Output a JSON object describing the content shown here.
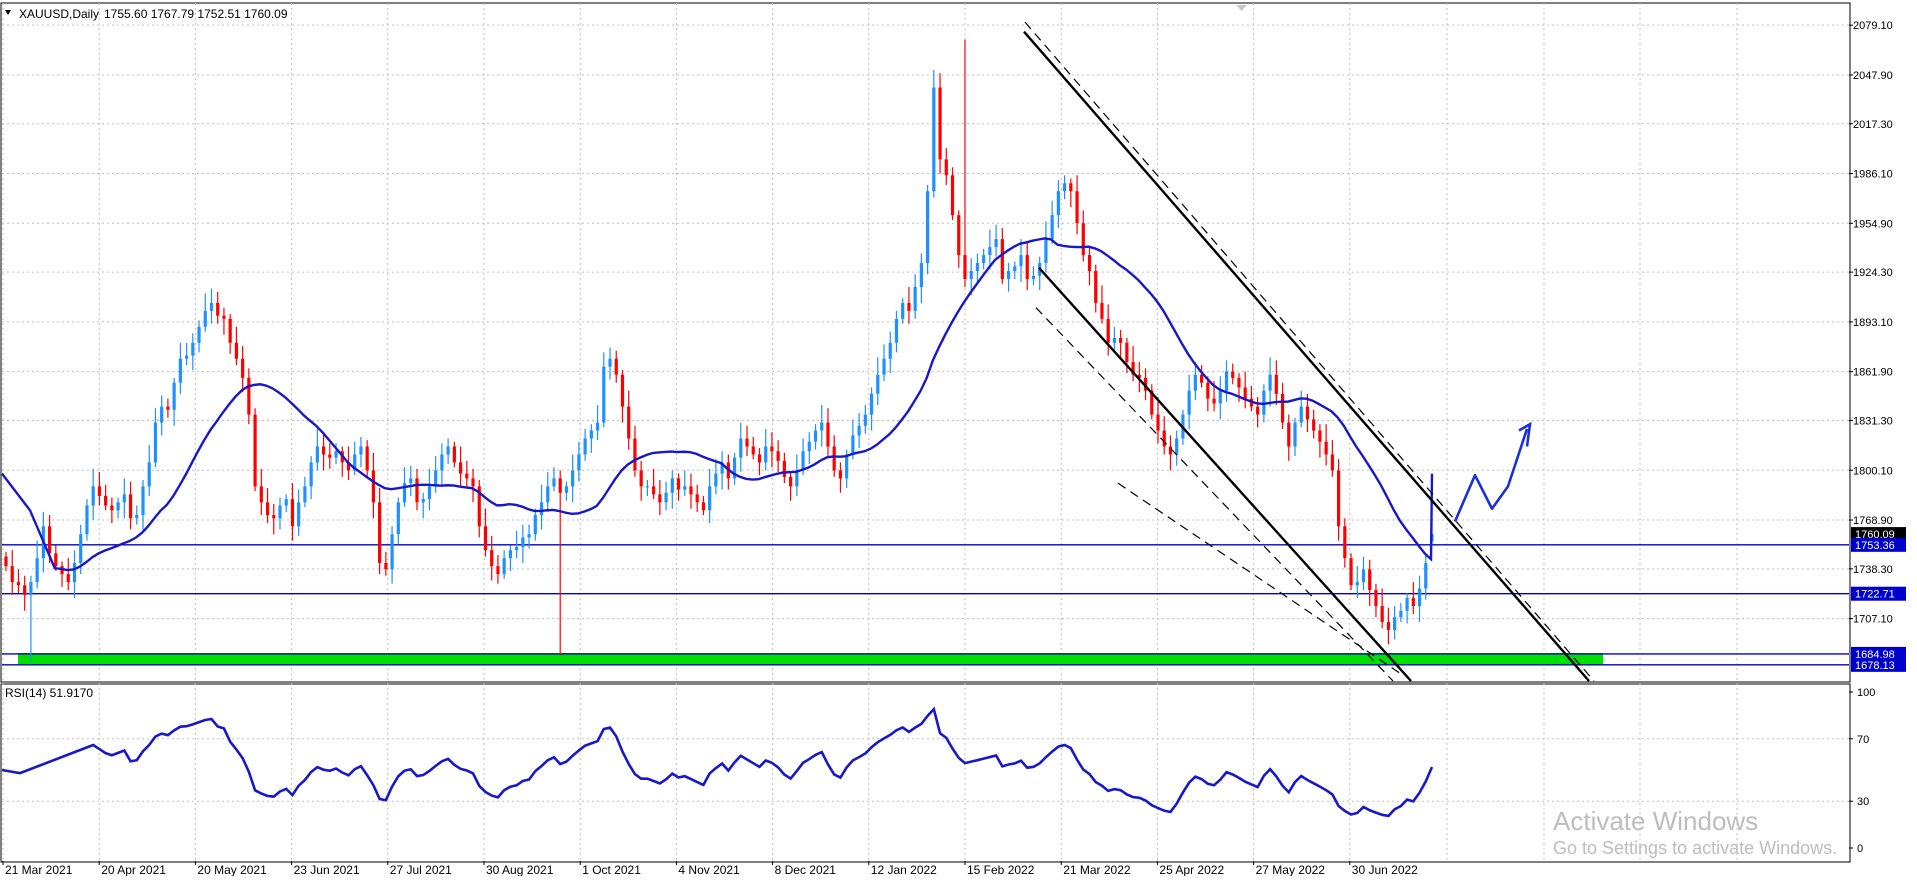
{
  "window": {
    "symbol_header": "XAUUSD,Daily",
    "ohlc_header": "1755.60 1767.79 1752.51 1760.09",
    "rsi_header": "RSI(14) 51.9170"
  },
  "watermark": {
    "line1": "Activate Windows",
    "line2": "Go to Settings to activate Windows."
  },
  "colors": {
    "bull": "#1e90ff",
    "bear": "#ff0000",
    "ma": "#1818c8",
    "hline": "#0000cd",
    "zone": "#00e000",
    "trend": "#000000",
    "drawing": "#1a2fd6",
    "grid": "#c0c0c0"
  },
  "chart_data": [
    {
      "type": "candlestick",
      "title": "XAUUSD,Daily",
      "ohlc_last": {
        "open": 1755.6,
        "high": 1767.79,
        "low": 1752.51,
        "close": 1760.09
      },
      "y_ticks": [
        "2079.10",
        "2047.90",
        "2017.30",
        "1986.10",
        "1954.90",
        "1924.30",
        "1893.10",
        "1861.90",
        "1831.30",
        "1800.10",
        "1768.90",
        "1738.30",
        "1707.10"
      ],
      "ylim": [
        1668,
        2093
      ],
      "x_ticks": [
        "21 Mar 2021",
        "20 Apr 2021",
        "20 May 2021",
        "23 Jun 2021",
        "27 Jul 2021",
        "30 Aug 2021",
        "1 Oct 2021",
        "4 Nov 2021",
        "8 Dec 2021",
        "12 Jan 2022",
        "15 Feb 2022",
        "21 Mar 2022",
        "25 Apr 2022",
        "27 May 2022",
        "30 Jun 2022"
      ],
      "price_labels": [
        {
          "label": "1760.09",
          "value": 1760.09,
          "style": "current"
        },
        {
          "label": "1753.36",
          "value": 1753.36,
          "style": "level"
        },
        {
          "label": "1722.71",
          "value": 1722.71,
          "style": "level"
        },
        {
          "label": "1684.98",
          "value": 1684.98,
          "style": "level"
        },
        {
          "label": "1678.13",
          "value": 1678.13,
          "style": "level"
        }
      ],
      "horizontal_levels": [
        1753.36,
        1722.71,
        1684.98,
        1678.13
      ],
      "support_zone": [
        1678.5,
        1685.5
      ],
      "closes": [
        1740,
        1730,
        1728,
        1722,
        1730,
        1745,
        1765,
        1748,
        1740,
        1735,
        1730,
        1742,
        1760,
        1778,
        1790,
        1784,
        1778,
        1775,
        1780,
        1785,
        1770,
        1772,
        1790,
        1805,
        1830,
        1840,
        1838,
        1855,
        1870,
        1872,
        1880,
        1890,
        1900,
        1905,
        1897,
        1895,
        1880,
        1870,
        1858,
        1835,
        1790,
        1780,
        1772,
        1770,
        1778,
        1782,
        1765,
        1780,
        1790,
        1805,
        1815,
        1810,
        1808,
        1812,
        1805,
        1800,
        1810,
        1815,
        1800,
        1780,
        1742,
        1738,
        1760,
        1780,
        1792,
        1795,
        1780,
        1782,
        1790,
        1800,
        1810,
        1815,
        1805,
        1798,
        1795,
        1790,
        1765,
        1750,
        1740,
        1735,
        1745,
        1750,
        1752,
        1758,
        1760,
        1772,
        1780,
        1790,
        1795,
        1786,
        1790,
        1800,
        1810,
        1820,
        1825,
        1830,
        1865,
        1870,
        1860,
        1840,
        1820,
        1800,
        1790,
        1790,
        1785,
        1780,
        1786,
        1795,
        1788,
        1790,
        1785,
        1780,
        1775,
        1790,
        1798,
        1805,
        1795,
        1808,
        1820,
        1815,
        1810,
        1805,
        1815,
        1812,
        1806,
        1796,
        1790,
        1800,
        1812,
        1818,
        1825,
        1830,
        1815,
        1800,
        1795,
        1810,
        1822,
        1828,
        1835,
        1848,
        1860,
        1870,
        1880,
        1895,
        1905,
        1900,
        1915,
        1930,
        1975,
        2040,
        1995,
        1985,
        1960,
        1935,
        1920,
        1925,
        1930,
        1935,
        1940,
        1945,
        1920,
        1925,
        1928,
        1935,
        1920,
        1922,
        1930,
        1945,
        1960,
        1975,
        1980,
        1975,
        1955,
        1935,
        1925,
        1905,
        1895,
        1880,
        1883,
        1880,
        1868,
        1860,
        1858,
        1850,
        1835,
        1825,
        1815,
        1810,
        1820,
        1835,
        1850,
        1860,
        1855,
        1845,
        1842,
        1850,
        1862,
        1858,
        1852,
        1845,
        1840,
        1835,
        1850,
        1860,
        1848,
        1830,
        1815,
        1830,
        1840,
        1832,
        1825,
        1818,
        1810,
        1800,
        1765,
        1745,
        1728,
        1730,
        1738,
        1725,
        1715,
        1705,
        1700,
        1708,
        1712,
        1720,
        1715,
        1726,
        1742,
        1760
      ],
      "ma_label": "Moving average (blue)",
      "trendlines": "Descending channel with parallel dashed lines",
      "annotation": "Hand-drawn upward arrow projection"
    },
    {
      "type": "line",
      "title": "RSI(14) 51.9170",
      "y_ticks": [
        "100",
        "70",
        "30",
        "0"
      ],
      "ylim": [
        0,
        100
      ],
      "last_value": 51.917
    }
  ]
}
